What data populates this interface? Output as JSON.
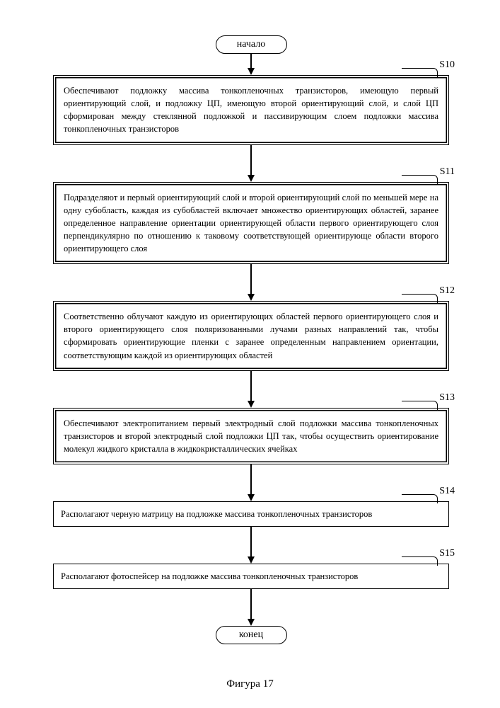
{
  "terminator_start": "начало",
  "terminator_end": "конец",
  "caption": "Фигура 17",
  "steps": [
    {
      "id": "s10",
      "label": "S10",
      "double": true,
      "text": "Обеспечивают подложку массива тонкопленочных транзисторов, имеющую первый ориентирующий слой, и подложку ЦП, имеющую второй ориентирующий слой, и слой ЦП сформирован между стеклянной подложкой и пассивирующим слоем подложки массива тонкопленочных транзисторов"
    },
    {
      "id": "s11",
      "label": "S11",
      "double": true,
      "text": "Подразделяют и первый ориентирующий слой и второй ориентирующий слой по меньшей мере на одну субобласть, каждая из субобластей включает множество ориентирующих областей, заранее определенное направление ориентации ориентирующей области первого ориентирующего слоя перпендикулярно по отношению к таковому соответствующей ориентирующе области второго ориентирующего слоя"
    },
    {
      "id": "s12",
      "label": "S12",
      "double": true,
      "text": "Соответственно облучают каждую из ориентирующих областей первого ориентирующего слоя и второго ориентирующего слоя поляризованными лучами разных направлений так, чтобы сформировать ориентирующие пленки с заранее определенным направлением ориентации, соответствующим каждой из ориентирующих областей"
    },
    {
      "id": "s13",
      "label": "S13",
      "double": true,
      "text": "Обеспечивают электропитанием первый электродный слой подложки массива тонкопленочных транзисторов и второй электродный слой подложки ЦП так, чтобы осуществить ориентирование молекул жидкого кристалла в жидкокристаллических ячейках"
    },
    {
      "id": "s14",
      "label": "S14",
      "double": false,
      "text": "Располагают черную матрицу на подложке массива тонкопленочных транзисторов"
    },
    {
      "id": "s15",
      "label": "S15",
      "double": false,
      "text": "Располагают фотоспейсер на подложке массива тонкопленочных транзисторов"
    }
  ],
  "style": {
    "arrow_long": 42,
    "arrow_short": 20
  }
}
